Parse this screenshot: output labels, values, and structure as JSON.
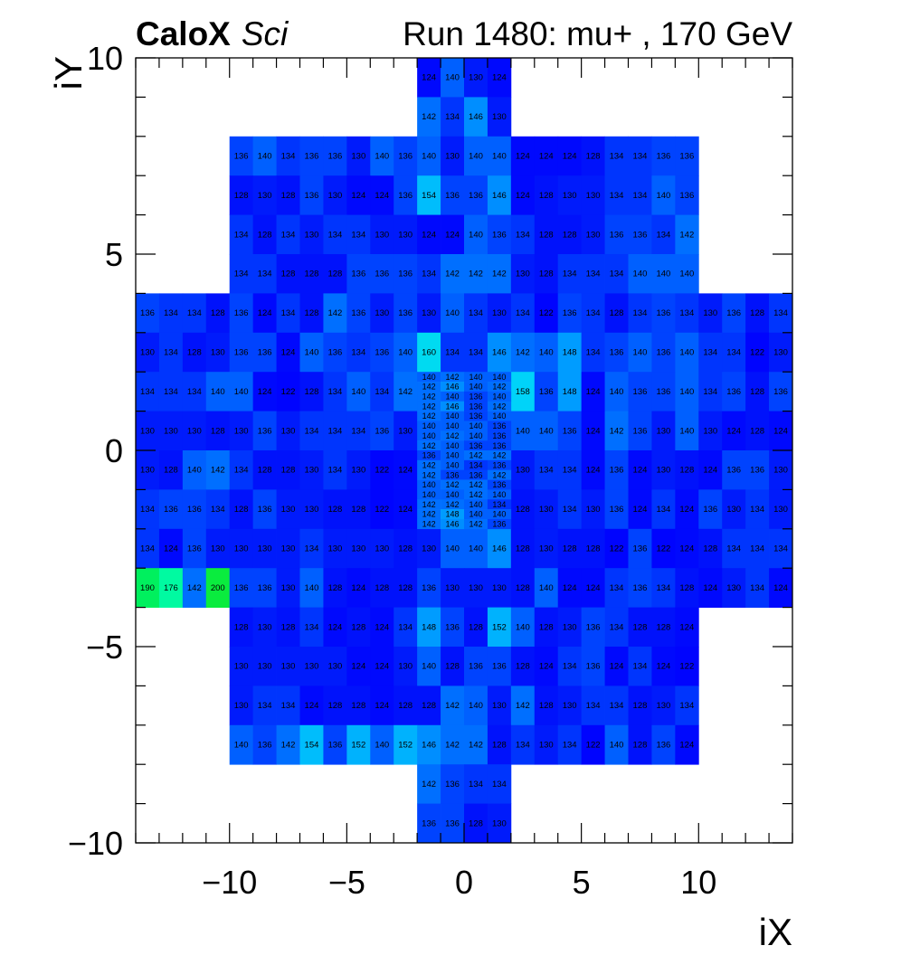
{
  "header": {
    "brand_bold": "CaloX",
    "brand_italic": "Sci",
    "run_label": "Run 1480: mu+ , 170 GeV"
  },
  "chart_data": {
    "type": "heatmap",
    "xlabel": "iX",
    "ylabel": "iY",
    "xlim": [
      -14,
      14
    ],
    "ylim": [
      -10,
      10
    ],
    "xticks": [
      -10,
      -5,
      0,
      5,
      10
    ],
    "yticks": [
      -10,
      -5,
      0,
      5,
      10
    ],
    "xtick_labels": [
      "−10",
      "−5",
      "0",
      "5",
      "10"
    ],
    "ytick_labels": [
      "−10",
      "−5",
      "0",
      "5",
      "10"
    ],
    "color_range": [
      120,
      210
    ],
    "cell_value_format": "integer count",
    "big_cells": [
      {
        "y": 9,
        "x0": -2,
        "values": [
          124,
          140,
          130,
          124
        ]
      },
      {
        "y": 8,
        "x0": -2,
        "values": [
          142,
          134,
          146,
          130
        ]
      },
      {
        "y": 7,
        "x0": -10,
        "values": [
          136,
          140,
          134,
          136,
          136,
          130,
          140,
          136,
          140,
          130,
          140,
          140,
          124,
          124,
          124,
          128,
          134,
          134,
          136,
          136
        ]
      },
      {
        "y": 6,
        "x0": -10,
        "values": [
          128,
          130,
          128,
          136,
          130,
          124,
          124,
          136,
          154,
          136,
          136,
          146,
          124,
          128,
          130,
          130,
          134,
          134,
          140,
          136
        ]
      },
      {
        "y": 5,
        "x0": -10,
        "values": [
          134,
          128,
          134,
          130,
          134,
          134,
          130,
          130,
          124,
          124,
          140,
          136,
          134,
          128,
          128,
          130,
          136,
          136,
          134,
          142
        ]
      },
      {
        "y": 4,
        "x0": -10,
        "values": [
          134,
          134,
          128,
          128,
          128,
          136,
          136,
          136,
          134,
          142,
          142,
          142,
          130,
          128,
          134,
          134,
          134,
          140,
          140,
          140
        ]
      },
      {
        "y": 3,
        "x0": -14,
        "values": [
          136,
          134,
          134,
          128,
          136,
          124,
          134,
          128,
          142,
          136,
          130,
          136,
          130,
          140,
          134,
          130,
          134,
          122,
          136,
          134,
          128,
          134,
          136,
          134,
          130,
          136,
          128,
          134
        ]
      },
      {
        "y": 2,
        "x0": -14,
        "values": [
          130,
          134,
          128,
          130,
          136,
          136,
          124,
          140,
          136,
          134,
          136,
          140,
          160,
          134,
          134,
          146,
          142,
          140,
          148,
          134,
          136,
          140,
          136,
          140,
          134,
          134,
          122,
          130
        ]
      },
      {
        "y": 1,
        "x0": -14,
        "values": [
          134,
          134,
          134,
          140,
          140,
          124,
          122,
          128,
          134,
          140,
          134,
          142,
          null,
          null,
          null,
          null,
          158,
          136,
          148,
          124,
          140,
          136,
          136,
          140,
          134,
          136,
          128,
          136
        ]
      },
      {
        "y": 0,
        "x0": -14,
        "values": [
          130,
          130,
          130,
          128,
          130,
          136,
          130,
          134,
          134,
          134,
          136,
          130,
          null,
          null,
          null,
          null,
          140,
          140,
          136,
          124,
          142,
          136,
          130,
          140,
          130,
          124,
          128,
          124
        ]
      },
      {
        "y": -1,
        "x0": -14,
        "values": [
          130,
          128,
          140,
          142,
          134,
          128,
          128,
          130,
          134,
          130,
          122,
          124,
          null,
          null,
          null,
          null,
          130,
          134,
          134,
          124,
          136,
          124,
          130,
          128,
          124,
          136,
          136,
          130
        ]
      },
      {
        "y": -2,
        "x0": -14,
        "values": [
          134,
          136,
          136,
          134,
          128,
          136,
          130,
          130,
          128,
          128,
          122,
          124,
          null,
          null,
          null,
          null,
          128,
          130,
          134,
          130,
          136,
          124,
          134,
          124,
          136,
          130,
          134,
          130
        ]
      },
      {
        "y": -3,
        "x0": -14,
        "values": [
          134,
          124,
          136,
          130,
          130,
          130,
          130,
          134,
          130,
          130,
          130,
          128,
          130,
          140,
          140,
          146,
          128,
          130,
          128,
          128,
          122,
          136,
          122,
          124,
          128,
          134,
          134,
          134
        ]
      },
      {
        "y": -4,
        "x0": -14,
        "values": [
          190,
          176,
          142,
          200,
          136,
          136,
          130,
          140,
          128,
          124,
          128,
          128,
          136,
          130,
          130,
          130,
          128,
          140,
          124,
          124,
          134,
          136,
          134,
          128,
          124,
          130,
          134,
          124
        ]
      },
      {
        "y": -5,
        "x0": -10,
        "values": [
          128,
          130,
          128,
          134,
          124,
          128,
          124,
          134,
          148,
          136,
          128,
          152,
          140,
          128,
          130,
          136,
          134,
          128,
          128,
          124
        ]
      },
      {
        "y": -6,
        "x0": -10,
        "values": [
          130,
          130,
          130,
          130,
          130,
          124,
          124,
          130,
          140,
          128,
          136,
          136,
          128,
          124,
          134,
          136,
          124,
          134,
          124,
          122
        ]
      },
      {
        "y": -7,
        "x0": -10,
        "values": [
          130,
          134,
          134,
          124,
          128,
          128,
          124,
          128,
          128,
          142,
          140,
          130,
          142,
          128,
          130,
          134,
          134,
          128,
          130,
          134
        ]
      },
      {
        "y": -8,
        "x0": -10,
        "values": [
          140,
          136,
          142,
          154,
          136,
          152,
          140,
          152,
          146,
          142,
          142,
          128,
          134,
          130,
          134,
          122,
          140,
          128,
          136,
          124
        ]
      },
      {
        "y": -9,
        "x0": -2,
        "values": [
          142,
          136,
          134,
          134
        ]
      },
      {
        "y": -10,
        "x0": -2,
        "values": [
          136,
          136,
          128,
          130
        ]
      }
    ],
    "fine_grid": {
      "x0": -2,
      "x1": 2,
      "y0": -2,
      "y1": 2,
      "cols": 4,
      "rows": 16,
      "rows_top_to_bottom": [
        [
          140,
          142,
          140,
          140
        ],
        [
          142,
          146,
          140,
          142
        ],
        [
          142,
          140,
          136,
          140
        ],
        [
          142,
          146,
          136,
          142
        ],
        [
          142,
          140,
          136,
          140
        ],
        [
          140,
          140,
          140,
          136
        ],
        [
          140,
          142,
          140,
          136
        ],
        [
          142,
          140,
          136,
          136
        ],
        [
          136,
          140,
          142,
          142
        ],
        [
          142,
          140,
          134,
          136
        ],
        [
          142,
          136,
          136,
          142
        ],
        [
          140,
          142,
          142,
          136
        ],
        [
          140,
          140,
          142,
          140
        ],
        [
          142,
          142,
          140,
          134
        ],
        [
          142,
          148,
          140,
          140
        ],
        [
          142,
          146,
          142,
          136
        ]
      ]
    }
  }
}
